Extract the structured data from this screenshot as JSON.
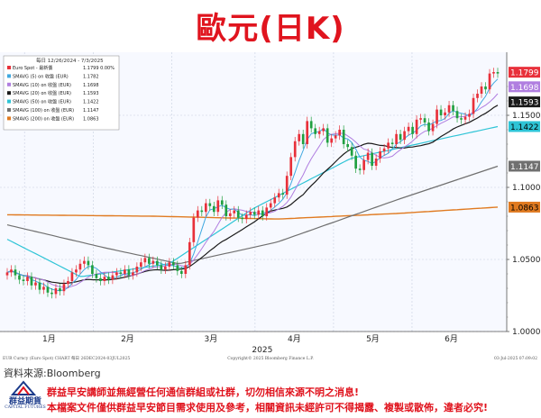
{
  "title": "歐元(日K)",
  "source": "資料來源:Bloomberg",
  "logo": {
    "name": "群益期貨",
    "sub": "CAPITAL FUTURES"
  },
  "disclaimer": [
    "群益早安講師並無經營任何通信群組或社群，切勿相信來源不明之消息!",
    "本檔案文件僅供群益早安節目需求使用及參考，相關資訊未經許可不得揭露、複製或散佈，違者必究!"
  ],
  "chart_data": {
    "type": "candlestick",
    "header": "每日 12/26/2024 - 7/3/2025",
    "legend": [
      {
        "label": "Euro Spot - 最新價",
        "value": "1.1799",
        "extra": "0.00%",
        "color": "#e8303a"
      },
      {
        "label": "SMAVG (5) on 收盤 (EUR)",
        "value": "1.1782",
        "color": "#3fa8e0"
      },
      {
        "label": "SMAVG (10) on 收盤 (EUR)",
        "value": "1.1698",
        "color": "#b07ee0"
      },
      {
        "label": "SMAVG (20) on 收盤 (EUR)",
        "value": "1.1593",
        "color": "#1a1a1a"
      },
      {
        "label": "SMAVG (50) on 收盤 (EUR)",
        "value": "1.1422",
        "color": "#2ec4d6"
      },
      {
        "label": "SMAVG (100) on 收盤 (EUR)",
        "value": "1.1147",
        "color": "#707070"
      },
      {
        "label": "SMAVG (200) on 收盤 (EUR)",
        "value": "1.0863",
        "color": "#e07a20"
      }
    ],
    "yticks": [
      "1.1500",
      "1.1000",
      "1.0500",
      "1.0000"
    ],
    "ylim": [
      1.0,
      1.185
    ],
    "x_months": [
      "1月",
      "2月",
      "3月",
      "4月",
      "5月",
      "6月"
    ],
    "x_year": "2025",
    "footer_left": "EUR Curncy (Euro Spot) CHART 每日 26DEC2024-03JUL2025",
    "footer_center": "Copyright© 2025 Bloomberg Finance L.P.",
    "footer_right": "03-Jul-2025 07:09:02",
    "price_labels": [
      {
        "text": "1.1799",
        "value": 1.1799,
        "bg": "#e8303a",
        "fg": "#ffffff"
      },
      {
        "text": "1.1698",
        "value": 1.1698,
        "bg": "#b07ee0",
        "fg": "#ffffff"
      },
      {
        "text": "1.1593",
        "value": 1.1593,
        "bg": "#1a1a1a",
        "fg": "#ffffff"
      },
      {
        "text": "1.1422",
        "value": 1.1422,
        "bg": "#2ec4d6",
        "fg": "#000000"
      },
      {
        "text": "1.1147",
        "value": 1.1147,
        "bg": "#707070",
        "fg": "#ffffff"
      },
      {
        "text": "1.0863",
        "value": 1.0863,
        "bg": "#e07a20",
        "fg": "#000000"
      }
    ],
    "closes": [
      1.041,
      1.043,
      1.039,
      1.036,
      1.035,
      1.038,
      1.032,
      1.034,
      1.029,
      1.031,
      1.027,
      1.026,
      1.03,
      1.028,
      1.033,
      1.035,
      1.041,
      1.043,
      1.047,
      1.049,
      1.046,
      1.04,
      1.037,
      1.035,
      1.038,
      1.036,
      1.039,
      1.041,
      1.04,
      1.043,
      1.039,
      1.041,
      1.045,
      1.048,
      1.051,
      1.047,
      1.049,
      1.046,
      1.043,
      1.045,
      1.048,
      1.046,
      1.042,
      1.04,
      1.046,
      1.062,
      1.079,
      1.084,
      1.083,
      1.089,
      1.087,
      1.083,
      1.091,
      1.088,
      1.08,
      1.082,
      1.084,
      1.079,
      1.078,
      1.081,
      1.083,
      1.081,
      1.084,
      1.08,
      1.086,
      1.089,
      1.093,
      1.096,
      1.095,
      1.108,
      1.121,
      1.132,
      1.137,
      1.13,
      1.146,
      1.141,
      1.137,
      1.139,
      1.141,
      1.131,
      1.134,
      1.136,
      1.14,
      1.13,
      1.128,
      1.122,
      1.113,
      1.112,
      1.119,
      1.124,
      1.115,
      1.12,
      1.125,
      1.127,
      1.131,
      1.13,
      1.137,
      1.133,
      1.139,
      1.142,
      1.137,
      1.147,
      1.148,
      1.145,
      1.139,
      1.144,
      1.154,
      1.15,
      1.152,
      1.157,
      1.153,
      1.148,
      1.147,
      1.149,
      1.151,
      1.162,
      1.165,
      1.17,
      1.168,
      1.179,
      1.18,
      1.179
    ]
  }
}
